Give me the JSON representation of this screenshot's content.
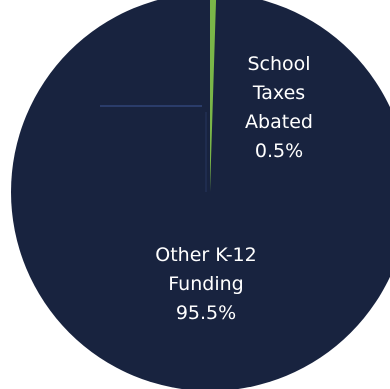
{
  "chart_data": {
    "type": "pie",
    "slices": [
      {
        "label_lines": [
          "School",
          "Taxes",
          "Abated",
          "0.5%"
        ],
        "value": 0.5,
        "color": "#7ab648"
      },
      {
        "label_lines": [
          "Other K-12",
          "Funding",
          "95.5%"
        ],
        "value": 95.5,
        "color": "#18233f"
      }
    ],
    "colors": {
      "background": "#ffffff",
      "pie_fill": "#18233f",
      "highlight_slice": "#7ab648",
      "label_text": "#ffffff"
    }
  }
}
